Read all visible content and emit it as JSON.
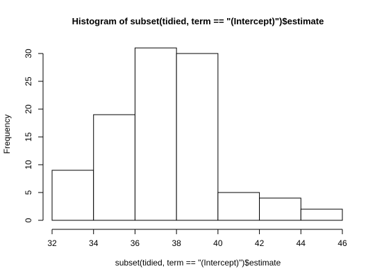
{
  "chart_data": {
    "type": "bar",
    "title": "Histogram of subset(tidied, term == \"(Intercept)\")$estimate",
    "xlabel": "subset(tidied, term == \"(Intercept)\")$estimate",
    "ylabel": "Frequency",
    "bins": [
      {
        "from": 32,
        "to": 34,
        "count": 9
      },
      {
        "from": 34,
        "to": 36,
        "count": 19
      },
      {
        "from": 36,
        "to": 38,
        "count": 31
      },
      {
        "from": 38,
        "to": 40,
        "count": 30
      },
      {
        "from": 40,
        "to": 42,
        "count": 5
      },
      {
        "from": 42,
        "to": 44,
        "count": 4
      },
      {
        "from": 44,
        "to": 46,
        "count": 2
      }
    ],
    "xlim": [
      32,
      46
    ],
    "ylim": [
      0,
      31
    ],
    "x_ticks": [
      32,
      34,
      36,
      38,
      40,
      42,
      44,
      46
    ],
    "y_ticks": [
      0,
      5,
      10,
      15,
      20,
      25,
      30
    ],
    "grid": false,
    "colors": {
      "bar_fill": "#ffffff",
      "bar_stroke": "#000000"
    }
  }
}
